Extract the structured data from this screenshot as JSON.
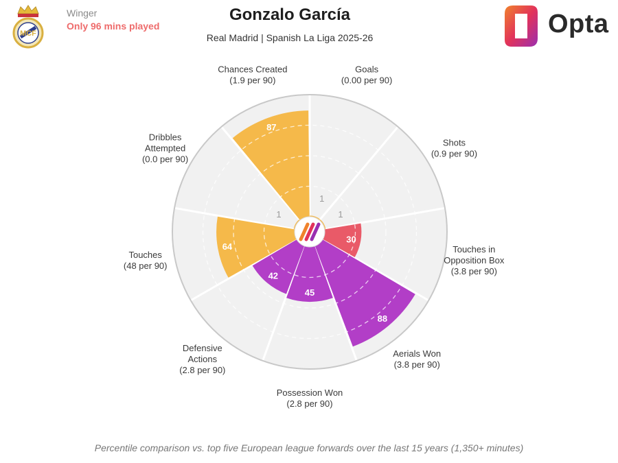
{
  "header": {
    "position": "Winger",
    "minutes_note": "Only 96 mins played",
    "player_name": "Gonzalo García",
    "subtitle": "Real Madrid | Spanish La Liga 2025-26",
    "brand": "Opta"
  },
  "footnote": "Percentile comparison vs. top five European league forwards over the last 15 years (1,350+ minutes)",
  "colors": {
    "attacking": "#f5b94a",
    "attacking_low": "#e95a68",
    "defending": "#b23ec7",
    "grid": "#d9d9d9",
    "background_slice": "#f1f1f1"
  },
  "chart_data": {
    "type": "polar-area",
    "scale": "percentile",
    "rlim": [
      0,
      100
    ],
    "categories": [
      {
        "label_lines": [
          "Goals",
          "(0.00 per 90)"
        ],
        "percentile": 1,
        "value_label": "1",
        "group": "attacking"
      },
      {
        "label_lines": [
          "Shots",
          "(0.9 per 90)"
        ],
        "percentile": 1,
        "value_label": "1",
        "group": "attacking"
      },
      {
        "label_lines": [
          "Touches in",
          "Opposition Box",
          "(3.8 per 90)"
        ],
        "percentile": 30,
        "value_label": "30",
        "group": "attacking_low"
      },
      {
        "label_lines": [
          "Aerials Won",
          "(3.8 per 90)"
        ],
        "percentile": 88,
        "value_label": "88",
        "group": "defending"
      },
      {
        "label_lines": [
          "Possession Won",
          "(2.8 per 90)"
        ],
        "percentile": 45,
        "value_label": "45",
        "group": "defending"
      },
      {
        "label_lines": [
          "Defensive",
          "Actions",
          "(2.8 per 90)"
        ],
        "percentile": 42,
        "value_label": "42",
        "group": "defending"
      },
      {
        "label_lines": [
          "Touches",
          "(48 per 90)"
        ],
        "percentile": 64,
        "value_label": "64",
        "group": "attacking"
      },
      {
        "label_lines": [
          "Dribbles",
          "Attempted",
          "(0.0 per 90)"
        ],
        "percentile": 1,
        "value_label": "1",
        "group": "attacking"
      },
      {
        "label_lines": [
          "Chances Created",
          "(1.9 per 90)"
        ],
        "percentile": 87,
        "value_label": "87",
        "group": "attacking"
      }
    ]
  }
}
